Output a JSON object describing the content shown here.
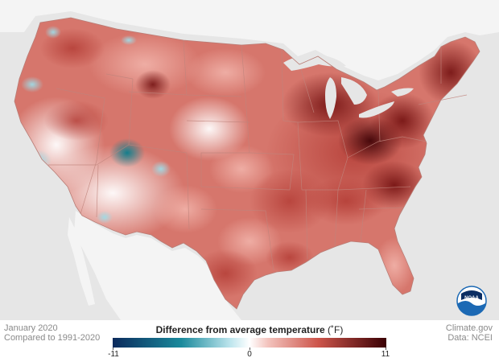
{
  "map": {
    "title": "Difference from average temperature",
    "unit": "(˚F)",
    "period": "January 2020",
    "baseline": "Compared to 1991-2020",
    "credit": "Climate.gov",
    "data_source": "Data: NCEI",
    "logo_text": "NOAA"
  },
  "legend": {
    "min_label": "-11",
    "mid_label": "0",
    "max_label": "11",
    "range": [
      -11,
      11
    ],
    "stops": [
      {
        "value": -11,
        "color": "#0b2a5c"
      },
      {
        "value": -5.5,
        "color": "#1a8a9c"
      },
      {
        "value": -1.5,
        "color": "#bfe6ee"
      },
      {
        "value": 0,
        "color": "#ffffff"
      },
      {
        "value": 1.5,
        "color": "#f3c3bd"
      },
      {
        "value": 5.5,
        "color": "#cd554b"
      },
      {
        "value": 11,
        "color": "#3a0004"
      }
    ]
  },
  "colors": {
    "ocean": "#e6e6e6",
    "neighbor_land": "#f4f4f4",
    "state_border": "#c0847c",
    "noaa_blue": "#1c69b4"
  }
}
